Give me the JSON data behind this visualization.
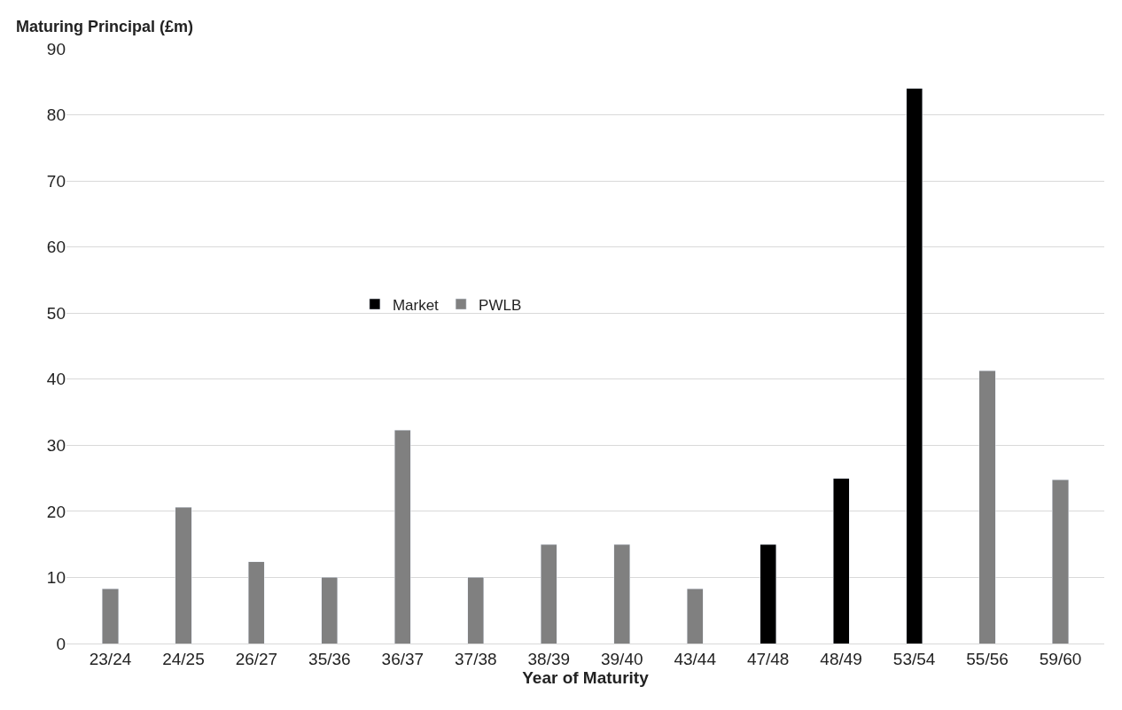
{
  "chart_data": {
    "type": "bar",
    "ylabel": "Maturing Principal (£m)",
    "xlabel": "Year of Maturity",
    "categories": [
      "23/24",
      "24/25",
      "26/27",
      "35/36",
      "36/37",
      "37/38",
      "38/39",
      "39/40",
      "43/44",
      "47/48",
      "48/49",
      "53/54",
      "55/56",
      "59/60"
    ],
    "series": [
      {
        "name": "Market",
        "color": "#000000",
        "values": [
          null,
          null,
          null,
          null,
          null,
          null,
          null,
          null,
          null,
          15,
          25,
          84,
          null,
          null
        ]
      },
      {
        "name": "PWLB",
        "color": "#808080",
        "values": [
          8.3,
          20.6,
          12.4,
          10,
          32.3,
          10,
          15,
          15,
          8.3,
          null,
          null,
          null,
          41.3,
          24.8
        ]
      }
    ],
    "stacked": true,
    "ylim": [
      0,
      90
    ],
    "yticks": [
      0,
      10,
      20,
      30,
      40,
      50,
      60,
      70,
      80,
      90
    ],
    "grid": "y",
    "legend": "center"
  }
}
